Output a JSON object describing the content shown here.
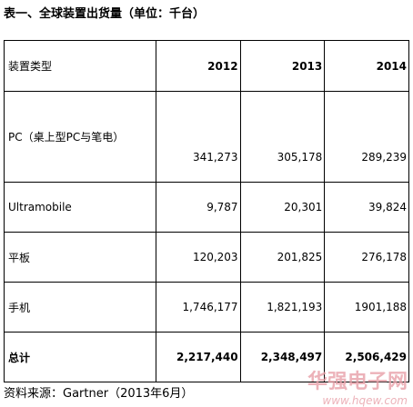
{
  "header": {
    "title": "表一、全球装置出货量（单位：千台）"
  },
  "table": {
    "columns": [
      "装置类型",
      "2012",
      "2013",
      "2014"
    ],
    "rows": [
      [
        "PC（桌上型PC与笔电）",
        "341,273",
        "305,178",
        "289,239"
      ],
      [
        "Ultramobile",
        "9,787",
        "20,301",
        "39,824"
      ],
      [
        "平板",
        "120,203",
        "201,825",
        "276,178"
      ],
      [
        "手机",
        "1,746,177",
        "1,821,193",
        "1901,188"
      ],
      [
        "总计",
        "2,217,440",
        "2,348,497",
        "2,506,429"
      ]
    ]
  },
  "footer": {
    "source": "资料来源：Gartner（2013年6月）"
  },
  "watermark": {
    "name": "华强电子网",
    "url": "www.hqew.com"
  }
}
